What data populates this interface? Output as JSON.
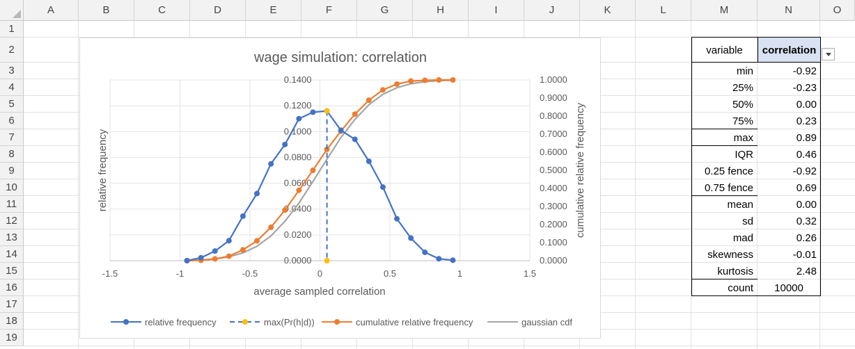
{
  "sheet": {
    "columns": [
      "A",
      "B",
      "C",
      "D",
      "E",
      "F",
      "G",
      "H",
      "I",
      "J",
      "K",
      "L",
      "M",
      "N",
      "O"
    ],
    "rows": [
      "1",
      "2",
      "3",
      "4",
      "5",
      "6",
      "7",
      "8",
      "9",
      "10",
      "11",
      "12",
      "13",
      "14",
      "15",
      "16",
      "17",
      "18",
      "19"
    ]
  },
  "stats_table": {
    "header_label": "variable",
    "header_value": "correlation",
    "rows": [
      {
        "label": "min",
        "value": "-0.92"
      },
      {
        "label": "25%",
        "value": "-0.23"
      },
      {
        "label": "50%",
        "value": "0.00"
      },
      {
        "label": "75%",
        "value": "0.23"
      },
      {
        "label": "max",
        "value": "0.89"
      },
      {
        "label": "IQR",
        "value": "0.46"
      },
      {
        "label": "0.25 fence",
        "value": "-0.92"
      },
      {
        "label": "0.75 fence",
        "value": "0.69"
      },
      {
        "label": "mean",
        "value": "0.00"
      },
      {
        "label": "sd",
        "value": "0.32"
      },
      {
        "label": "mad",
        "value": "0.26"
      },
      {
        "label": "skewness",
        "value": "-0.01"
      },
      {
        "label": "kurtosis",
        "value": "2.48"
      },
      {
        "label": "count",
        "value": "10000"
      }
    ]
  },
  "chart_data": {
    "type": "line",
    "title": "wage simulation: correlation",
    "xlabel": "average sampled correlation",
    "ylabel": "relative frequency",
    "y2label": "cumulative relative frequency",
    "xlim": [
      -1.5,
      1.5
    ],
    "ylim": [
      0,
      0.14
    ],
    "y2lim": [
      0,
      1.0
    ],
    "x_ticks": [
      "-1.5",
      "-1",
      "-0.5",
      "0",
      "0.5",
      "1",
      "1.5"
    ],
    "y_ticks": [
      "0.0000",
      "0.0200",
      "0.0400",
      "0.0600",
      "0.0800",
      "0.1000",
      "0.1200",
      "0.1400"
    ],
    "y2_ticks": [
      "0.0000",
      "0.1000",
      "0.2000",
      "0.3000",
      "0.4000",
      "0.5000",
      "0.6000",
      "0.7000",
      "0.8000",
      "0.9000",
      "1.0000"
    ],
    "legend_position": "bottom",
    "series": [
      {
        "name": "relative frequency",
        "color": "#4472c4",
        "axis": "left",
        "markers": true,
        "x": [
          -0.95,
          -0.85,
          -0.75,
          -0.65,
          -0.55,
          -0.45,
          -0.35,
          -0.25,
          -0.15,
          -0.05,
          0.05,
          0.15,
          0.25,
          0.35,
          0.45,
          0.55,
          0.65,
          0.75,
          0.85,
          0.95
        ],
        "y": [
          0.0001,
          0.0023,
          0.0075,
          0.0155,
          0.0345,
          0.052,
          0.075,
          0.09,
          0.11,
          0.115,
          0.116,
          0.101,
          0.094,
          0.077,
          0.057,
          0.0325,
          0.0175,
          0.0065,
          0.0015,
          0.0004
        ]
      },
      {
        "name": "max(Pr(h|d))",
        "color": "#ffc000",
        "axis": "left",
        "markers": true,
        "dashed": true,
        "x": [
          0.05,
          0.05
        ],
        "y": [
          0.116,
          0.0
        ]
      },
      {
        "name": "cumulative relative frequency",
        "color": "#ed7d31",
        "axis": "right",
        "markers": true,
        "x": [
          -0.95,
          -0.85,
          -0.75,
          -0.65,
          -0.55,
          -0.45,
          -0.35,
          -0.25,
          -0.15,
          -0.05,
          0.05,
          0.15,
          0.25,
          0.35,
          0.45,
          0.55,
          0.65,
          0.75,
          0.85,
          0.95
        ],
        "y": [
          0.0,
          0.002,
          0.01,
          0.025,
          0.06,
          0.11,
          0.185,
          0.28,
          0.39,
          0.5,
          0.616,
          0.717,
          0.811,
          0.888,
          0.945,
          0.977,
          0.994,
          0.998,
          1.0,
          1.0
        ]
      },
      {
        "name": "gaussian cdf",
        "color": "#a5a5a5",
        "axis": "right",
        "markers": false,
        "x": [
          -0.95,
          -0.85,
          -0.75,
          -0.65,
          -0.55,
          -0.45,
          -0.35,
          -0.25,
          -0.15,
          -0.05,
          0.05,
          0.15,
          0.25,
          0.35,
          0.45,
          0.55,
          0.65,
          0.75,
          0.85,
          0.95
        ],
        "y": [
          0.001,
          0.004,
          0.01,
          0.021,
          0.043,
          0.08,
          0.137,
          0.218,
          0.319,
          0.438,
          0.562,
          0.681,
          0.782,
          0.863,
          0.92,
          0.957,
          0.979,
          0.99,
          0.996,
          0.999
        ]
      }
    ]
  }
}
